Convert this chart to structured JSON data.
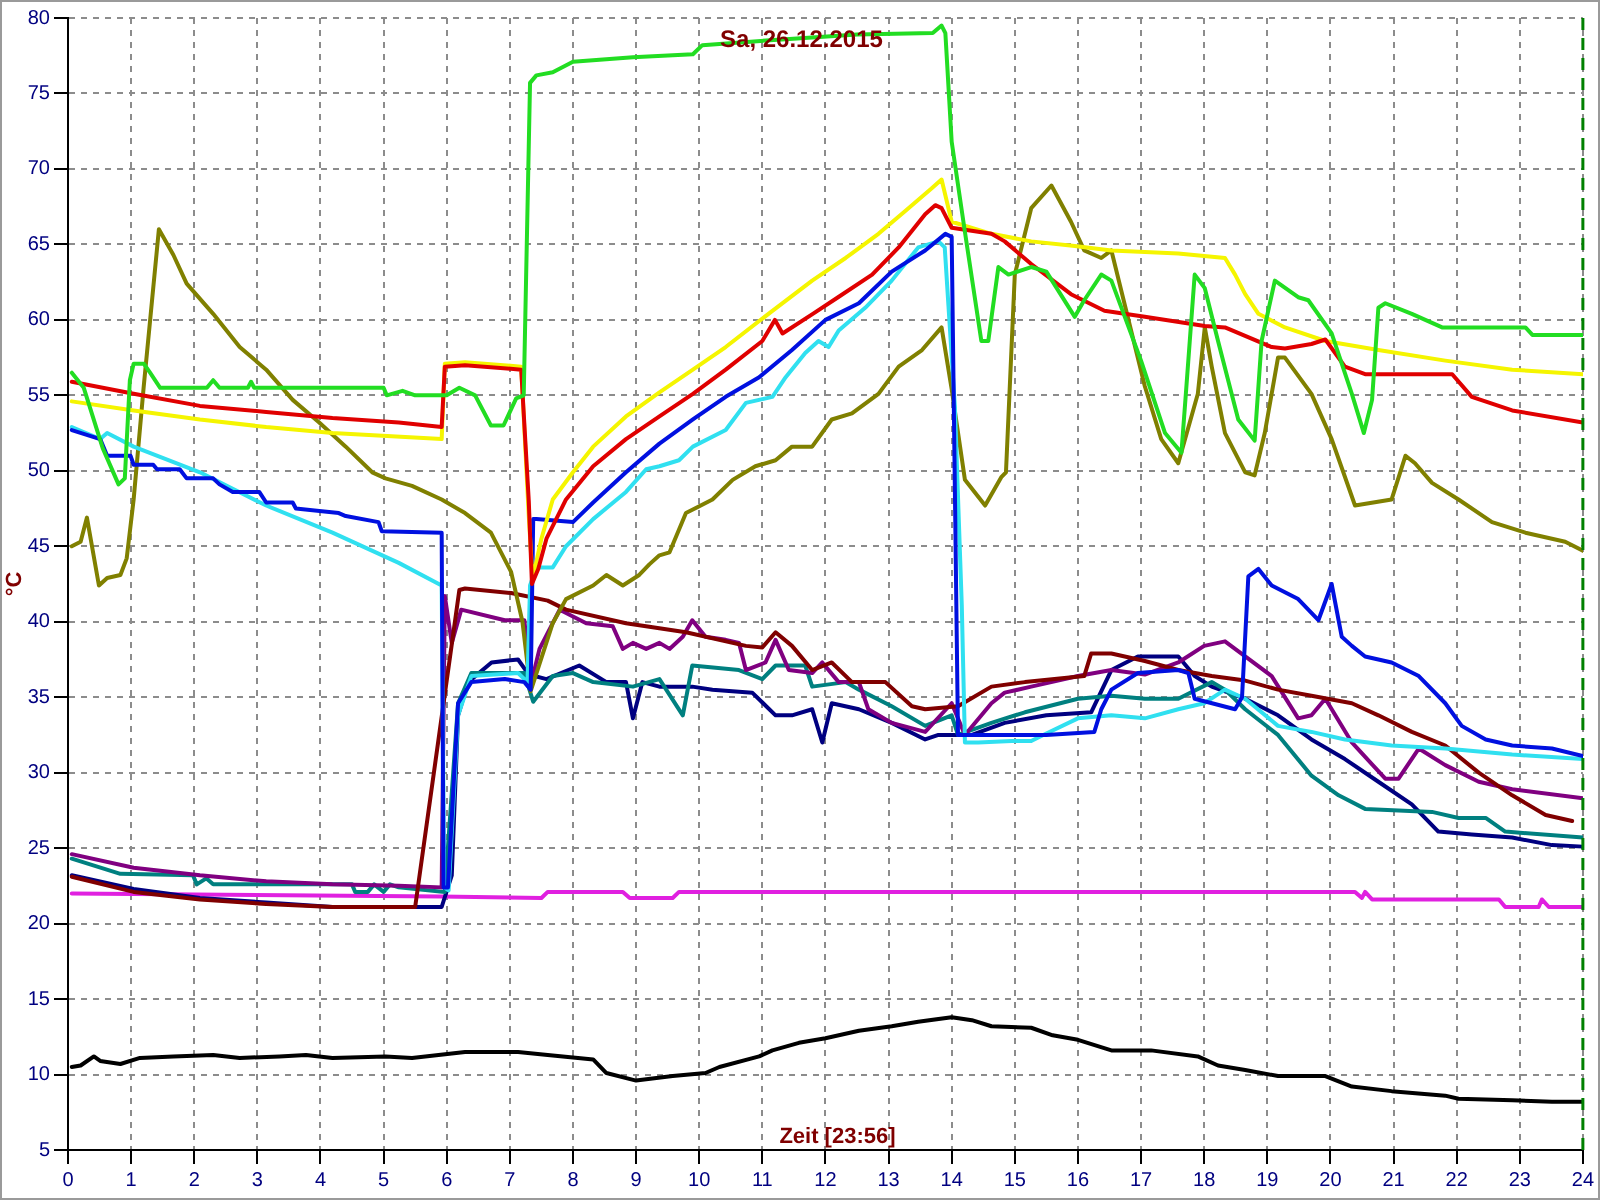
{
  "chart_data": {
    "type": "line",
    "title": "Sa, 26.12.2015",
    "xlabel": "Zeit [23:56]",
    "ylabel": "°C",
    "xlim": [
      0,
      24
    ],
    "xticks": [
      0,
      1,
      2,
      3,
      4,
      5,
      6,
      7,
      8,
      9,
      10,
      11,
      12,
      13,
      14,
      15,
      16,
      17,
      18,
      19,
      20,
      21,
      22,
      23,
      24
    ],
    "ylim": [
      5,
      80
    ],
    "yticks": [
      5,
      10,
      15,
      20,
      25,
      30,
      35,
      40,
      45,
      50,
      55,
      60,
      65,
      70,
      75,
      80
    ],
    "grid": true,
    "marker": "none",
    "ref_lines": [
      {
        "axis": "x",
        "value": 24,
        "color": "#008000",
        "line_style": "dashed"
      }
    ],
    "series": [
      {
        "color": "#22dd22",
        "x": [
          0.06,
          0.25,
          0.55,
          0.8,
          0.9,
          0.98,
          1.04,
          1.2,
          1.3,
          1.46,
          2.2,
          2.3,
          2.4,
          2.85,
          2.9,
          2.95,
          5.0,
          5.05,
          5.3,
          5.5,
          6.0,
          6.2,
          6.45,
          6.7,
          6.9,
          7.1,
          7.22,
          7.32,
          7.42,
          7.68,
          8.0,
          8.95,
          9.9,
          10.05,
          11.37,
          12.5,
          13.7,
          13.84,
          13.9,
          14.0,
          14.2,
          14.47,
          14.58,
          14.74,
          14.9,
          15.26,
          15.5,
          15.95,
          16.1,
          16.37,
          16.53,
          17.0,
          17.38,
          17.64,
          17.71,
          17.85,
          18.01,
          18.22,
          18.54,
          18.8,
          18.91,
          19.12,
          19.49,
          19.65,
          20.02,
          20.34,
          20.53,
          20.66,
          20.76,
          20.87,
          21.29,
          21.77,
          23.09,
          23.2,
          24.0
        ],
        "values": [
          56.5,
          55.5,
          51.5,
          49.1,
          49.5,
          56.0,
          57.1,
          57.1,
          56.5,
          55.5,
          55.5,
          56.0,
          55.5,
          55.5,
          55.9,
          55.5,
          55.5,
          55.0,
          55.3,
          55.0,
          55.0,
          55.5,
          55.0,
          53.0,
          53.0,
          54.8,
          55.0,
          75.7,
          76.2,
          76.4,
          77.1,
          77.4,
          77.6,
          78.2,
          78.6,
          78.9,
          79.0,
          79.5,
          79.0,
          71.8,
          66.1,
          58.6,
          58.6,
          63.5,
          63.0,
          63.5,
          63.2,
          60.2,
          61.3,
          63.0,
          62.6,
          57.3,
          52.5,
          51.2,
          55.1,
          63.0,
          62.1,
          58.6,
          53.4,
          52.0,
          58.6,
          62.6,
          61.5,
          61.3,
          59.1,
          55.1,
          52.5,
          54.7,
          60.8,
          61.1,
          60.4,
          59.5,
          59.5,
          59.0,
          59.0
        ]
      },
      {
        "color": "#e00000",
        "x": [
          0.06,
          1.04,
          2.09,
          3.14,
          4.19,
          5.24,
          5.92,
          5.97,
          6.29,
          7.18,
          7.3,
          7.35,
          7.45,
          7.58,
          7.89,
          8.32,
          8.84,
          9.37,
          9.9,
          10.42,
          11.0,
          11.2,
          11.32,
          11.8,
          12.2,
          12.74,
          13.16,
          13.58,
          13.74,
          13.84,
          14.0,
          14.63,
          14.84,
          15.26,
          15.89,
          16.42,
          17.06,
          18.01,
          18.33,
          19.07,
          19.28,
          19.7,
          19.92,
          20.23,
          20.55,
          21.93,
          22.24,
          22.88,
          24.0
        ],
        "values": [
          55.9,
          55.1,
          54.3,
          53.9,
          53.5,
          53.2,
          52.9,
          56.9,
          57.0,
          56.7,
          48.0,
          42.5,
          43.5,
          45.5,
          48.1,
          50.3,
          52.1,
          53.6,
          55.1,
          56.7,
          58.6,
          60.0,
          59.1,
          60.4,
          61.5,
          63.0,
          64.8,
          67.0,
          67.6,
          67.4,
          66.1,
          65.7,
          65.2,
          63.7,
          61.7,
          60.6,
          60.2,
          59.6,
          59.5,
          58.2,
          58.1,
          58.4,
          58.7,
          56.9,
          56.4,
          56.4,
          54.9,
          54.0,
          53.2
        ]
      },
      {
        "color": "#f5f500",
        "x": [
          0.06,
          1.04,
          2.09,
          3.14,
          4.19,
          5.92,
          5.97,
          6.29,
          7.18,
          7.3,
          7.36,
          7.5,
          7.68,
          8.0,
          8.32,
          8.84,
          9.37,
          9.9,
          10.42,
          11.16,
          11.79,
          12.32,
          12.84,
          13.26,
          13.68,
          13.84,
          14.0,
          14.63,
          15.26,
          15.95,
          16.53,
          17.59,
          18.33,
          18.49,
          18.65,
          18.86,
          19.28,
          19.92,
          20.76,
          21.82,
          22.88,
          24.0
        ],
        "values": [
          54.6,
          54.0,
          53.4,
          52.9,
          52.5,
          52.1,
          57.1,
          57.2,
          56.9,
          47.0,
          42.8,
          45.5,
          48.1,
          49.9,
          51.6,
          53.6,
          55.2,
          56.7,
          58.2,
          60.6,
          62.6,
          64.1,
          65.7,
          67.2,
          68.7,
          69.3,
          66.5,
          65.7,
          65.2,
          64.9,
          64.6,
          64.4,
          64.1,
          63.0,
          61.7,
          60.4,
          59.5,
          58.6,
          58.0,
          57.3,
          56.7,
          56.4
        ]
      },
      {
        "color": "#0010e0",
        "x": [
          0.06,
          0.51,
          0.62,
          0.99,
          1.04,
          1.35,
          1.41,
          1.77,
          1.88,
          2.3,
          2.4,
          2.61,
          3.03,
          3.14,
          3.56,
          3.61,
          4.29,
          4.4,
          4.92,
          4.97,
          5.92,
          5.95,
          6.02,
          6.18,
          6.39,
          6.92,
          7.23,
          7.33,
          7.37,
          7.42,
          8.0,
          8.32,
          8.84,
          9.37,
          9.9,
          10.42,
          10.95,
          11.47,
          12.0,
          12.53,
          13.05,
          13.58,
          13.9,
          14.0,
          14.1,
          14.63,
          15.5,
          16.26,
          16.37,
          16.53,
          16.95,
          17.59,
          17.75,
          17.85,
          18.49,
          18.6,
          18.7,
          18.86,
          19.07,
          19.49,
          19.81,
          20.02,
          20.18,
          20.34,
          20.55,
          20.97,
          21.4,
          21.82,
          22.08,
          22.46,
          22.88,
          23.51,
          24.0
        ],
        "values": [
          52.7,
          52.1,
          51.0,
          51.0,
          50.4,
          50.4,
          50.1,
          50.1,
          49.5,
          49.5,
          49.1,
          48.6,
          48.6,
          47.9,
          47.9,
          47.5,
          47.2,
          47.0,
          46.6,
          46.0,
          45.9,
          22.4,
          22.4,
          34.6,
          36.0,
          36.2,
          36.0,
          35.5,
          46.8,
          46.8,
          46.6,
          47.9,
          49.9,
          51.8,
          53.4,
          54.9,
          56.2,
          58.0,
          60.0,
          61.1,
          63.2,
          64.6,
          65.7,
          65.5,
          32.5,
          32.5,
          32.5,
          32.7,
          34.2,
          35.5,
          36.6,
          36.8,
          36.6,
          34.9,
          34.2,
          35.0,
          43.0,
          43.5,
          42.4,
          41.5,
          40.1,
          42.5,
          39.0,
          38.4,
          37.7,
          37.3,
          36.4,
          34.6,
          33.1,
          32.2,
          31.8,
          31.6,
          31.1
        ]
      },
      {
        "color": "#30e0f0",
        "x": [
          0.06,
          0.51,
          0.62,
          1.04,
          2.09,
          3.14,
          4.19,
          5.24,
          5.92,
          5.96,
          6.03,
          6.18,
          6.39,
          7.13,
          7.28,
          7.32,
          7.42,
          7.68,
          7.89,
          8.32,
          8.84,
          9.16,
          9.37,
          9.68,
          9.9,
          10.42,
          10.74,
          11.16,
          11.37,
          11.68,
          11.89,
          12.05,
          12.21,
          12.63,
          13.05,
          13.47,
          13.79,
          13.89,
          14.05,
          14.16,
          14.21,
          14.42,
          14.95,
          15.26,
          15.5,
          16.0,
          16.53,
          17.06,
          17.59,
          18.0,
          18.33,
          18.65,
          19.17,
          19.7,
          20.23,
          20.97,
          21.82,
          22.88,
          24.0
        ],
        "values": [
          52.9,
          52.1,
          52.5,
          51.6,
          49.9,
          47.7,
          45.9,
          43.9,
          42.4,
          22.4,
          22.2,
          33.8,
          36.4,
          36.6,
          36.0,
          42.4,
          43.6,
          43.6,
          45.0,
          46.8,
          48.6,
          50.1,
          50.3,
          50.7,
          51.6,
          52.7,
          54.5,
          54.9,
          56.2,
          57.8,
          58.6,
          58.2,
          59.3,
          60.8,
          62.6,
          64.8,
          65.2,
          64.8,
          54.3,
          41.1,
          32.0,
          32.0,
          32.1,
          32.1,
          32.6,
          33.6,
          33.8,
          33.6,
          34.2,
          34.6,
          35.5,
          34.9,
          33.1,
          32.7,
          32.2,
          31.8,
          31.6,
          31.2,
          30.9
        ]
      },
      {
        "color": "#808000",
        "x": [
          0.06,
          0.2,
          0.3,
          0.49,
          0.62,
          0.83,
          0.93,
          1.04,
          1.2,
          1.44,
          1.67,
          1.88,
          2.3,
          2.72,
          3.14,
          3.56,
          3.98,
          4.4,
          4.82,
          5.03,
          5.45,
          5.92,
          6.29,
          6.7,
          7.02,
          7.2,
          7.33,
          7.68,
          7.89,
          8.32,
          8.53,
          8.79,
          9.05,
          9.21,
          9.37,
          9.53,
          9.79,
          10.21,
          10.53,
          10.89,
          11.21,
          11.47,
          11.79,
          12.1,
          12.42,
          12.84,
          13.16,
          13.53,
          13.84,
          14.0,
          14.21,
          14.53,
          14.79,
          14.86,
          15.0,
          15.26,
          15.58,
          15.89,
          16.1,
          16.37,
          16.53,
          17.06,
          17.32,
          17.59,
          17.9,
          18.01,
          18.12,
          18.33,
          18.65,
          18.8,
          18.96,
          19.17,
          19.28,
          19.7,
          20.02,
          20.39,
          20.97,
          21.19,
          21.34,
          21.61,
          22.03,
          22.56,
          23.09,
          23.72,
          24.0
        ],
        "values": [
          45.0,
          45.3,
          46.9,
          42.4,
          42.9,
          43.1,
          44.2,
          48.1,
          55.6,
          66.0,
          64.3,
          62.4,
          60.4,
          58.2,
          56.7,
          54.7,
          53.2,
          51.6,
          49.9,
          49.5,
          49.0,
          48.1,
          47.2,
          45.9,
          43.3,
          40.0,
          35.4,
          39.9,
          41.5,
          42.4,
          43.1,
          42.4,
          43.1,
          43.8,
          44.4,
          44.6,
          47.2,
          48.1,
          49.4,
          50.3,
          50.7,
          51.6,
          51.6,
          53.4,
          53.8,
          55.1,
          56.9,
          58.0,
          59.5,
          55.4,
          49.4,
          47.7,
          49.6,
          49.9,
          63.0,
          67.4,
          68.9,
          66.5,
          64.6,
          64.1,
          64.6,
          55.6,
          52.1,
          50.5,
          55.1,
          59.5,
          56.9,
          52.5,
          49.9,
          49.7,
          52.5,
          57.5,
          57.5,
          55.1,
          52.1,
          47.7,
          48.1,
          51.0,
          50.5,
          49.2,
          48.1,
          46.6,
          45.9,
          45.3,
          44.7
        ]
      },
      {
        "color": "#800000",
        "x": [
          0.06,
          1.04,
          2.09,
          3.14,
          4.19,
          5.5,
          6.2,
          6.29,
          7.02,
          7.6,
          7.89,
          8.84,
          9.79,
          10.74,
          11.0,
          11.21,
          11.47,
          11.79,
          12.1,
          12.42,
          12.95,
          13.37,
          13.58,
          14.1,
          14.63,
          15.16,
          16.1,
          16.21,
          16.53,
          17.06,
          17.59,
          18.12,
          18.65,
          19.17,
          19.7,
          20.34,
          20.76,
          21.29,
          21.82,
          22.35,
          22.88,
          23.41,
          23.83
        ],
        "values": [
          23.1,
          22.1,
          21.6,
          21.3,
          21.1,
          21.1,
          42.1,
          42.2,
          41.9,
          41.4,
          40.8,
          39.9,
          39.3,
          38.4,
          38.3,
          39.3,
          38.4,
          36.8,
          37.3,
          36.0,
          36.0,
          34.4,
          34.2,
          34.4,
          35.7,
          36.0,
          36.4,
          37.9,
          37.9,
          37.4,
          36.8,
          36.4,
          36.1,
          35.5,
          35.1,
          34.6,
          33.8,
          32.7,
          31.8,
          30.0,
          28.5,
          27.2,
          26.8
        ]
      },
      {
        "color": "#800080",
        "x": [
          0.06,
          1.04,
          2.09,
          3.14,
          4.19,
          5.24,
          5.92,
          5.97,
          6.08,
          6.23,
          6.92,
          7.23,
          7.33,
          7.47,
          7.79,
          8.21,
          8.63,
          8.79,
          8.95,
          9.16,
          9.37,
          9.53,
          9.74,
          9.89,
          10.1,
          10.42,
          10.63,
          10.74,
          11.05,
          11.21,
          11.42,
          11.79,
          11.95,
          12.21,
          12.53,
          12.68,
          13.05,
          13.58,
          14.0,
          14.21,
          14.63,
          14.84,
          15.26,
          16.0,
          16.53,
          17.06,
          17.59,
          18.0,
          18.33,
          18.65,
          19.07,
          19.49,
          19.7,
          19.92,
          20.34,
          20.87,
          21.08,
          21.4,
          21.82,
          22.35,
          22.88,
          24.0
        ],
        "values": [
          24.6,
          23.7,
          23.2,
          22.8,
          22.6,
          22.5,
          22.4,
          41.7,
          38.6,
          40.8,
          40.1,
          40.1,
          35.8,
          38.2,
          40.8,
          39.9,
          39.7,
          38.2,
          38.6,
          38.2,
          38.6,
          38.2,
          39.0,
          40.1,
          39.0,
          38.8,
          38.6,
          36.8,
          37.3,
          38.8,
          36.8,
          36.6,
          37.3,
          36.0,
          36.0,
          34.2,
          33.3,
          32.7,
          34.6,
          32.5,
          34.6,
          35.3,
          35.7,
          36.4,
          36.8,
          36.5,
          37.3,
          38.4,
          38.7,
          37.7,
          36.4,
          33.6,
          33.8,
          34.9,
          32.0,
          29.6,
          29.6,
          31.6,
          30.5,
          29.4,
          28.9,
          28.3
        ]
      },
      {
        "color": "#008080",
        "x": [
          0.06,
          0.83,
          1.98,
          2.04,
          2.19,
          2.3,
          4.5,
          4.55,
          4.75,
          4.85,
          5.0,
          5.1,
          5.24,
          5.97,
          6.18,
          6.39,
          7.23,
          7.37,
          7.68,
          8.0,
          8.32,
          8.95,
          9.37,
          9.74,
          9.89,
          10.63,
          11.0,
          11.21,
          11.68,
          11.79,
          12.32,
          12.53,
          13.05,
          13.58,
          14.0,
          14.1,
          14.63,
          15.16,
          16.0,
          16.53,
          17.06,
          17.59,
          18.12,
          18.33,
          18.65,
          19.17,
          19.7,
          20.13,
          20.55,
          21.61,
          22.03,
          22.46,
          22.77,
          24.0
        ],
        "values": [
          24.3,
          23.3,
          23.2,
          22.6,
          23.0,
          22.6,
          22.6,
          22.1,
          22.1,
          22.6,
          22.1,
          22.6,
          22.4,
          22.1,
          34.6,
          36.6,
          36.6,
          34.7,
          36.4,
          36.6,
          36.0,
          35.7,
          36.2,
          33.8,
          37.1,
          36.8,
          36.2,
          37.1,
          37.1,
          35.7,
          36.0,
          35.5,
          34.4,
          33.1,
          33.8,
          32.5,
          33.3,
          34.0,
          34.9,
          35.1,
          34.9,
          34.9,
          36.0,
          35.5,
          34.2,
          32.5,
          29.8,
          28.5,
          27.6,
          27.4,
          27.0,
          27.0,
          26.1,
          25.7
        ]
      },
      {
        "color": "#000080",
        "x": [
          0.06,
          1.04,
          2.09,
          3.14,
          4.19,
          5.92,
          6.08,
          6.18,
          6.34,
          6.71,
          7.13,
          7.3,
          7.58,
          8.1,
          8.53,
          8.84,
          8.95,
          9.1,
          9.37,
          9.89,
          10.21,
          10.84,
          11.21,
          11.47,
          11.79,
          11.95,
          12.1,
          12.53,
          13.05,
          13.58,
          13.79,
          14.32,
          14.84,
          15.5,
          16.21,
          16.53,
          16.95,
          17.59,
          17.85,
          18.12,
          18.65,
          19.17,
          19.7,
          20.23,
          20.76,
          21.29,
          21.71,
          22.24,
          22.88,
          23.51,
          24.0
        ],
        "values": [
          23.2,
          22.3,
          21.7,
          21.4,
          21.1,
          21.1,
          23.2,
          33.8,
          36.0,
          37.3,
          37.5,
          36.5,
          36.2,
          37.1,
          36.0,
          36.0,
          33.6,
          36.0,
          35.7,
          35.7,
          35.5,
          35.3,
          33.8,
          33.8,
          34.2,
          32.0,
          34.6,
          34.2,
          33.3,
          32.2,
          32.5,
          32.5,
          33.3,
          33.8,
          34.0,
          36.8,
          37.7,
          37.7,
          36.4,
          35.7,
          34.9,
          33.8,
          32.2,
          30.9,
          29.4,
          27.9,
          26.1,
          25.9,
          25.7,
          25.2,
          25.1
        ]
      },
      {
        "color": "#e020e0",
        "x": [
          0.06,
          5.9,
          7.5,
          7.6,
          8.79,
          8.9,
          9.58,
          9.68,
          20.39,
          20.5,
          20.55,
          20.66,
          22.67,
          22.77,
          23.3,
          23.35,
          23.46,
          24.0
        ],
        "values": [
          22.0,
          21.8,
          21.7,
          22.1,
          22.1,
          21.7,
          21.7,
          22.1,
          22.1,
          21.7,
          22.1,
          21.6,
          21.6,
          21.1,
          21.1,
          21.6,
          21.1,
          21.1
        ]
      },
      {
        "color": "#000000",
        "x": [
          0.06,
          0.2,
          0.41,
          0.51,
          0.83,
          1.14,
          1.67,
          2.3,
          2.72,
          3.35,
          3.77,
          4.19,
          5.03,
          5.45,
          5.87,
          6.29,
          7.13,
          7.6,
          8.32,
          8.53,
          9.0,
          9.58,
          10.1,
          10.32,
          10.95,
          11.16,
          11.58,
          12.0,
          12.53,
          13.05,
          13.47,
          14.0,
          14.32,
          14.63,
          15.26,
          15.6,
          16.0,
          16.53,
          17.16,
          17.9,
          18.22,
          18.65,
          19.17,
          19.92,
          20.34,
          20.97,
          21.82,
          22.03,
          22.88,
          23.51,
          24.0
        ],
        "values": [
          10.5,
          10.6,
          11.2,
          10.9,
          10.7,
          11.1,
          11.2,
          11.3,
          11.1,
          11.2,
          11.3,
          11.1,
          11.2,
          11.1,
          11.3,
          11.5,
          11.5,
          11.3,
          11.0,
          10.1,
          9.6,
          9.9,
          10.1,
          10.5,
          11.2,
          11.6,
          12.1,
          12.4,
          12.9,
          13.2,
          13.5,
          13.8,
          13.6,
          13.2,
          13.1,
          12.6,
          12.3,
          11.6,
          11.6,
          11.2,
          10.6,
          10.3,
          9.9,
          9.9,
          9.2,
          8.9,
          8.6,
          8.4,
          8.3,
          8.2,
          8.2
        ]
      }
    ]
  }
}
